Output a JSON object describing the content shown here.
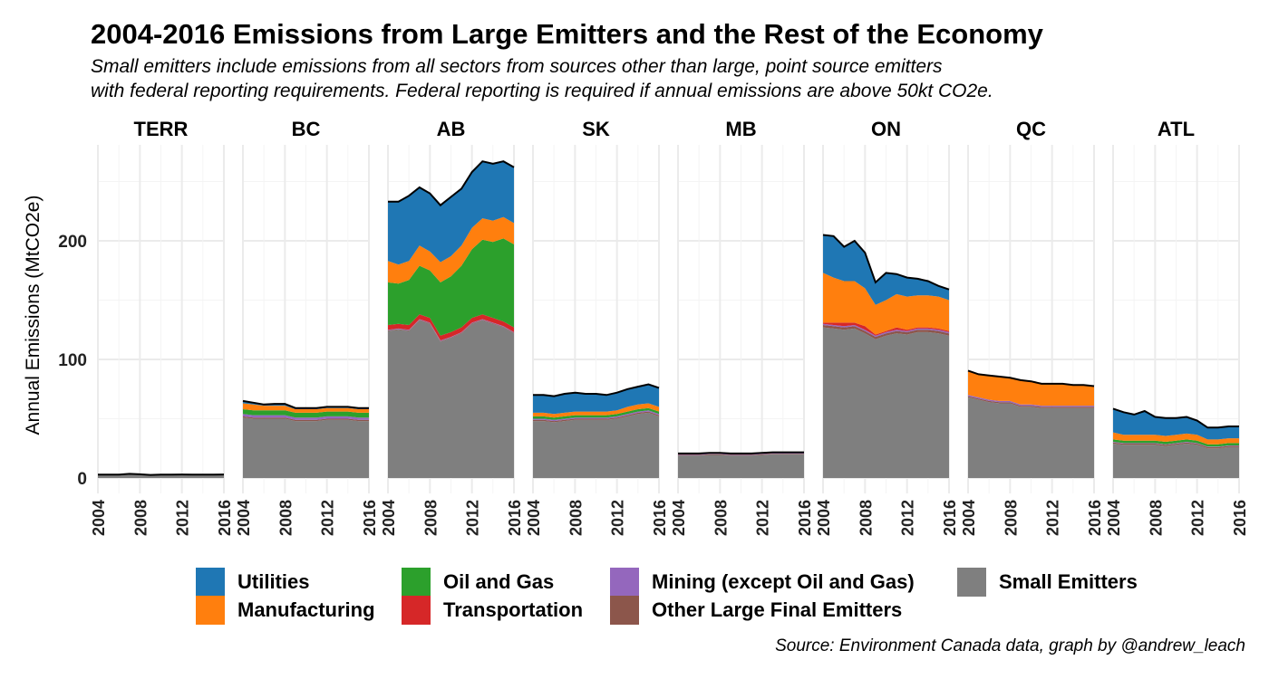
{
  "title": "2004-2016 Emissions from Large Emitters and the Rest of the Economy",
  "subtitle_line1": "Small emitters include emissions from all sectors from sources other than large, point source emitters",
  "subtitle_line2": "with federal reporting requirements. Federal reporting is required if annual emissions are above 50kt CO2e.",
  "caption": "Source: Environment Canada data, graph by @andrew_leach",
  "chart_data": {
    "type": "area",
    "stacked": true,
    "faceted_by": "region",
    "ylabel": "Annual Emissions (MtCO2e)",
    "ylim": [
      0,
      275
    ],
    "yticks": [
      0,
      100,
      200
    ],
    "xlim": [
      2004,
      2016
    ],
    "xticks": [
      2004,
      2008,
      2012,
      2016
    ],
    "grid": true,
    "legend_position": "bottom",
    "x": [
      2004,
      2005,
      2006,
      2007,
      2008,
      2009,
      2010,
      2011,
      2012,
      2013,
      2014,
      2015,
      2016
    ],
    "series_order": [
      "Small Emitters",
      "Other Large Final Emitters",
      "Mining (except Oil and Gas)",
      "Transportation",
      "Oil and Gas",
      "Manufacturing",
      "Utilities"
    ],
    "colors": {
      "Utilities": "#1f77b4",
      "Manufacturing": "#ff7f0e",
      "Oil and Gas": "#2ca02c",
      "Transportation": "#d62728",
      "Mining (except Oil and Gas)": "#9467bd",
      "Other Large Final Emitters": "#8c564b",
      "Small Emitters": "#7f7f7f"
    },
    "legend": [
      [
        "Utilities",
        "Oil and Gas",
        "Mining (except Oil and Gas)",
        "Small Emitters"
      ],
      [
        "Manufacturing",
        "Transportation",
        "Other Large Final Emitters"
      ]
    ],
    "panels": [
      {
        "region": "TERR",
        "series": {
          "Small Emitters": [
            2.5,
            2.5,
            2.6,
            3.2,
            2.8,
            2.3,
            2.5,
            2.6,
            2.7,
            2.6,
            2.6,
            2.6,
            2.7
          ],
          "Other Large Final Emitters": [
            0,
            0,
            0,
            0,
            0,
            0,
            0,
            0,
            0,
            0,
            0,
            0,
            0
          ],
          "Mining (except Oil and Gas)": [
            0.2,
            0.2,
            0.2,
            0.2,
            0.2,
            0.2,
            0.2,
            0.2,
            0.2,
            0.2,
            0.2,
            0.2,
            0.2
          ],
          "Transportation": [
            0,
            0,
            0,
            0,
            0,
            0,
            0,
            0,
            0,
            0,
            0,
            0,
            0
          ],
          "Oil and Gas": [
            0,
            0,
            0,
            0,
            0,
            0,
            0,
            0,
            0,
            0,
            0,
            0,
            0
          ],
          "Manufacturing": [
            0,
            0,
            0,
            0,
            0,
            0,
            0,
            0,
            0,
            0,
            0,
            0,
            0
          ],
          "Utilities": [
            0.1,
            0.1,
            0.1,
            0.1,
            0.1,
            0.1,
            0.1,
            0.1,
            0.1,
            0.1,
            0.1,
            0.1,
            0.1
          ]
        }
      },
      {
        "region": "BC",
        "series": {
          "Small Emitters": [
            51,
            50,
            50,
            50,
            50,
            48,
            48,
            48,
            49,
            49,
            49,
            48,
            48
          ],
          "Other Large Final Emitters": [
            1,
            1,
            1,
            1,
            1,
            1,
            1,
            1,
            1,
            1,
            1,
            1,
            1
          ],
          "Mining (except Oil and Gas)": [
            2,
            2,
            2,
            2,
            2,
            2,
            2,
            2,
            2,
            2,
            2,
            2,
            2
          ],
          "Transportation": [
            0,
            0,
            0,
            0,
            0,
            0,
            0,
            0,
            0,
            0,
            0,
            0,
            0
          ],
          "Oil and Gas": [
            4,
            4,
            4,
            4,
            4,
            4,
            4,
            4,
            4,
            4,
            4,
            4,
            4
          ],
          "Manufacturing": [
            5,
            5,
            4,
            4,
            4,
            3,
            3,
            3,
            3,
            3,
            3,
            3,
            3
          ],
          "Utilities": [
            2,
            1.5,
            1,
            1.5,
            1.5,
            1,
            1,
            1,
            1,
            1,
            1,
            1,
            1
          ]
        }
      },
      {
        "region": "AB",
        "series": {
          "Small Emitters": [
            124,
            125,
            124,
            133,
            130,
            115,
            118,
            122,
            130,
            133,
            130,
            127,
            122
          ],
          "Other Large Final Emitters": [
            0.5,
            0.5,
            0.5,
            0.5,
            0.5,
            0.5,
            0.5,
            0.5,
            0.5,
            0.5,
            0.5,
            0.5,
            0.5
          ],
          "Mining (except Oil and Gas)": [
            0.5,
            0.5,
            0.5,
            0.5,
            0.5,
            0.5,
            0.5,
            0.5,
            0.5,
            0.5,
            0.5,
            0.5,
            0.5
          ],
          "Transportation": [
            4,
            4,
            4,
            4,
            4,
            4,
            4,
            4,
            4,
            4,
            4,
            4,
            4
          ],
          "Oil and Gas": [
            36,
            34,
            38,
            41,
            40,
            45,
            47,
            52,
            58,
            63,
            64,
            70,
            70
          ],
          "Manufacturing": [
            18,
            16,
            16,
            17,
            16,
            17,
            17,
            17,
            18,
            18,
            18,
            18,
            18
          ],
          "Utilities": [
            50,
            53,
            55,
            49,
            49,
            48,
            50,
            48,
            47,
            48,
            48,
            47,
            47
          ]
        }
      },
      {
        "region": "SK",
        "series": {
          "Small Emitters": [
            48,
            48,
            47,
            48,
            49,
            49,
            49,
            49,
            50,
            52,
            54,
            55,
            52
          ],
          "Other Large Final Emitters": [
            1,
            1,
            1,
            1,
            1,
            1,
            1,
            1,
            1,
            1,
            1,
            1,
            1
          ],
          "Mining (except Oil and Gas)": [
            1,
            1,
            1,
            1,
            1,
            1,
            1,
            1,
            1,
            1,
            1,
            1,
            1
          ],
          "Transportation": [
            0,
            0,
            0,
            0,
            0,
            0,
            0,
            0,
            0,
            0,
            0,
            0,
            0
          ],
          "Oil and Gas": [
            2,
            2,
            2,
            2,
            2,
            2,
            2,
            2,
            2,
            2,
            2,
            2,
            2
          ],
          "Manufacturing": [
            3,
            3,
            3,
            3,
            3,
            3,
            3,
            3,
            3,
            4,
            4,
            4,
            4
          ],
          "Utilities": [
            15,
            15,
            15,
            16,
            16,
            15,
            15,
            14,
            15,
            15,
            15,
            16,
            16
          ]
        }
      },
      {
        "region": "MB",
        "series": {
          "Small Emitters": [
            19,
            19,
            19,
            19.5,
            19.5,
            19,
            19,
            19,
            19.5,
            20,
            20,
            20,
            20
          ],
          "Other Large Final Emitters": [
            0.5,
            0.5,
            0.5,
            0.5,
            0.5,
            0.5,
            0.5,
            0.5,
            0.5,
            0.5,
            0.5,
            0.5,
            0.5
          ],
          "Mining (except Oil and Gas)": [
            0.5,
            0.5,
            0.5,
            0.5,
            0.5,
            0.5,
            0.5,
            0.5,
            0.5,
            0.5,
            0.5,
            0.5,
            0.5
          ],
          "Transportation": [
            0,
            0,
            0,
            0,
            0,
            0,
            0,
            0,
            0,
            0,
            0,
            0,
            0
          ],
          "Oil and Gas": [
            0,
            0,
            0,
            0,
            0,
            0,
            0,
            0,
            0,
            0,
            0,
            0,
            0
          ],
          "Manufacturing": [
            0.5,
            0.5,
            0.5,
            0.5,
            0.5,
            0.5,
            0.5,
            0.5,
            0.5,
            0.5,
            0.5,
            0.5,
            0.5
          ],
          "Utilities": [
            0.2,
            0.2,
            0.2,
            0.2,
            0.2,
            0.2,
            0.2,
            0.2,
            0.2,
            0.2,
            0.2,
            0.2,
            0.2
          ]
        }
      },
      {
        "region": "ON",
        "series": {
          "Small Emitters": [
            127,
            126,
            125,
            126,
            122,
            117,
            120,
            122,
            121,
            123,
            123,
            122,
            120
          ],
          "Other Large Final Emitters": [
            2,
            2,
            2,
            2,
            2,
            2,
            2,
            2,
            2,
            2,
            2,
            2,
            2
          ],
          "Mining (except Oil and Gas)": [
            1,
            1,
            1,
            1,
            1,
            1,
            1,
            1,
            1,
            1,
            1,
            1,
            1
          ],
          "Transportation": [
            1,
            2,
            3,
            2,
            3,
            1,
            1,
            2,
            1,
            1,
            1,
            1,
            1
          ],
          "Oil and Gas": [
            0,
            0,
            0,
            0,
            0,
            0,
            0,
            0,
            0,
            0,
            0,
            0,
            0
          ],
          "Manufacturing": [
            42,
            38,
            35,
            35,
            32,
            25,
            26,
            28,
            28,
            27,
            27,
            27,
            26
          ],
          "Utilities": [
            32,
            35,
            29,
            34,
            30,
            19,
            23,
            17,
            16,
            14,
            12,
            9,
            9
          ]
        }
      },
      {
        "region": "QC",
        "series": {
          "Small Emitters": [
            68,
            66,
            64,
            63,
            63,
            60,
            60,
            59,
            59,
            59,
            59,
            59,
            59
          ],
          "Other Large Final Emitters": [
            1,
            1,
            1,
            1,
            1,
            1,
            1,
            1,
            1,
            1,
            1,
            1,
            1
          ],
          "Mining (except Oil and Gas)": [
            1,
            1,
            1,
            1,
            1,
            1,
            1,
            1,
            1,
            1,
            1,
            1,
            1
          ],
          "Transportation": [
            0,
            0,
            0,
            0,
            0,
            0,
            0,
            0,
            0,
            0,
            0,
            0,
            0
          ],
          "Oil and Gas": [
            0,
            0,
            0,
            0,
            0,
            0,
            0,
            0,
            0,
            0,
            0,
            0,
            0
          ],
          "Manufacturing": [
            20,
            19,
            20,
            20,
            19,
            20,
            19,
            18,
            18,
            18,
            17,
            17,
            16
          ],
          "Utilities": [
            0.5,
            0.5,
            0.5,
            0.5,
            0.5,
            0.5,
            0.5,
            0.5,
            0.5,
            0.5,
            0.5,
            0.5,
            0.5
          ]
        }
      },
      {
        "region": "ATL",
        "series": {
          "Small Emitters": [
            29,
            28,
            28,
            28,
            28,
            27,
            28,
            29,
            28,
            25,
            25,
            26,
            26
          ],
          "Other Large Final Emitters": [
            1,
            1,
            1,
            1,
            1,
            1,
            1,
            1,
            1,
            1,
            1,
            1,
            1
          ],
          "Mining (except Oil and Gas)": [
            0.5,
            0.5,
            0.5,
            0.5,
            0.5,
            0.5,
            0.5,
            0.5,
            0.5,
            0.5,
            0.5,
            0.5,
            0.5
          ],
          "Transportation": [
            0,
            0,
            0,
            0,
            0,
            0,
            0,
            0,
            0,
            0,
            0,
            0,
            0
          ],
          "Oil and Gas": [
            2,
            2,
            2,
            2,
            2,
            2,
            2,
            2,
            2,
            2,
            2,
            2,
            2
          ],
          "Manufacturing": [
            6,
            5,
            5,
            5,
            5,
            5,
            5,
            5,
            5,
            4,
            4,
            4,
            4
          ],
          "Utilities": [
            20,
            19,
            17,
            20,
            15,
            15,
            14,
            14,
            12,
            10,
            10,
            10,
            10
          ]
        }
      }
    ]
  }
}
